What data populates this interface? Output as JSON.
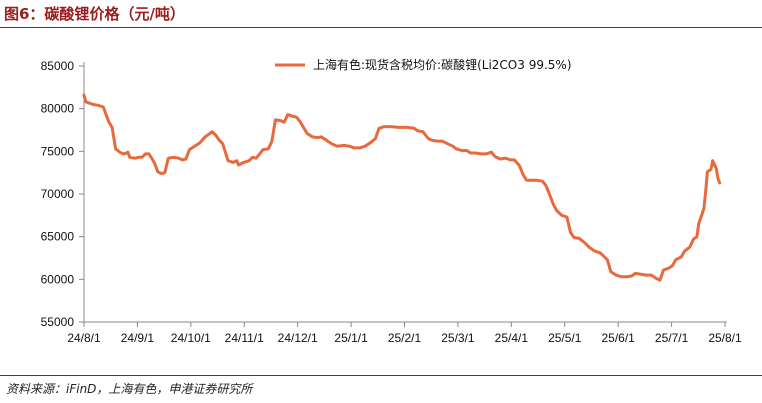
{
  "figure": {
    "title": "图6：碳酸锂价格（元/吨）",
    "source": "资料来源：iFinD，上海有色，申港证券研究所"
  },
  "colors": {
    "accent": "#9a1c1c",
    "series": "#e8693b"
  },
  "chart_data": {
    "type": "line",
    "title": "",
    "xlabel": "",
    "ylabel": "",
    "ylim": [
      55000,
      85000
    ],
    "yticks": [
      "55000",
      "60000",
      "65000",
      "70000",
      "75000",
      "80000",
      "85000"
    ],
    "xticks": [
      "24/8/1",
      "24/9/1",
      "24/10/1",
      "24/11/1",
      "24/12/1",
      "25/1/1",
      "25/2/1",
      "25/3/1",
      "25/4/1",
      "25/5/1",
      "25/6/1",
      "25/7/1",
      "25/8/1"
    ],
    "grid": false,
    "legend": "top",
    "series": [
      {
        "name": "上海有色:现货含税均价:碳酸锂(Li2CO3 99.5%)",
        "points": [
          [
            "2024-08-01",
            81600
          ],
          [
            "2024-08-02",
            80800
          ],
          [
            "2024-08-06",
            80500
          ],
          [
            "2024-08-09",
            80400
          ],
          [
            "2024-08-12",
            80200
          ],
          [
            "2024-08-15",
            78500
          ],
          [
            "2024-08-17",
            77800
          ],
          [
            "2024-08-19",
            75300
          ],
          [
            "2024-08-22",
            74800
          ],
          [
            "2024-08-24",
            74700
          ],
          [
            "2024-08-26",
            74900
          ],
          [
            "2024-08-27",
            74300
          ],
          [
            "2024-08-30",
            74200
          ],
          [
            "2024-09-01",
            74300
          ],
          [
            "2024-09-03",
            74300
          ],
          [
            "2024-09-05",
            74700
          ],
          [
            "2024-09-07",
            74700
          ],
          [
            "2024-09-10",
            73700
          ],
          [
            "2024-09-12",
            72600
          ],
          [
            "2024-09-14",
            72400
          ],
          [
            "2024-09-16",
            72500
          ],
          [
            "2024-09-18",
            74200
          ],
          [
            "2024-09-21",
            74300
          ],
          [
            "2024-09-24",
            74200
          ],
          [
            "2024-09-26",
            74000
          ],
          [
            "2024-09-28",
            74100
          ],
          [
            "2024-09-30",
            75200
          ],
          [
            "2024-10-03",
            75600
          ],
          [
            "2024-10-06",
            76000
          ],
          [
            "2024-10-09",
            76700
          ],
          [
            "2024-10-11",
            77000
          ],
          [
            "2024-10-13",
            77300
          ],
          [
            "2024-10-15",
            76900
          ],
          [
            "2024-10-17",
            76300
          ],
          [
            "2024-10-19",
            75900
          ],
          [
            "2024-10-22",
            73900
          ],
          [
            "2024-10-25",
            73700
          ],
          [
            "2024-10-27",
            73900
          ],
          [
            "2024-10-28",
            73400
          ],
          [
            "2024-10-31",
            73700
          ],
          [
            "2024-11-03",
            73900
          ],
          [
            "2024-11-05",
            74300
          ],
          [
            "2024-11-07",
            74200
          ],
          [
            "2024-11-09",
            74700
          ],
          [
            "2024-11-11",
            75200
          ],
          [
            "2024-11-14",
            75300
          ],
          [
            "2024-11-16",
            76200
          ],
          [
            "2024-11-18",
            78700
          ],
          [
            "2024-11-21",
            78600
          ],
          [
            "2024-11-23",
            78400
          ],
          [
            "2024-11-25",
            79300
          ],
          [
            "2024-11-28",
            79100
          ],
          [
            "2024-11-30",
            79000
          ],
          [
            "2024-12-02",
            78500
          ],
          [
            "2024-12-04",
            77800
          ],
          [
            "2024-12-06",
            77100
          ],
          [
            "2024-12-09",
            76700
          ],
          [
            "2024-12-12",
            76600
          ],
          [
            "2024-12-14",
            76700
          ],
          [
            "2024-12-17",
            76300
          ],
          [
            "2024-12-20",
            75900
          ],
          [
            "2024-12-23",
            75600
          ],
          [
            "2024-12-27",
            75700
          ],
          [
            "2024-12-30",
            75600
          ],
          [
            "2025-01-02",
            75400
          ],
          [
            "2025-01-05",
            75400
          ],
          [
            "2025-01-08",
            75600
          ],
          [
            "2025-01-11",
            76000
          ],
          [
            "2025-01-14",
            76500
          ],
          [
            "2025-01-16",
            77700
          ],
          [
            "2025-01-19",
            77900
          ],
          [
            "2025-01-23",
            77900
          ],
          [
            "2025-01-27",
            77800
          ],
          [
            "2025-02-01",
            77800
          ],
          [
            "2025-02-05",
            77700
          ],
          [
            "2025-02-07",
            77400
          ],
          [
            "2025-02-10",
            77300
          ],
          [
            "2025-02-13",
            76500
          ],
          [
            "2025-02-15",
            76300
          ],
          [
            "2025-02-18",
            76200
          ],
          [
            "2025-02-21",
            76200
          ],
          [
            "2025-02-24",
            75900
          ],
          [
            "2025-02-27",
            75600
          ],
          [
            "2025-03-01",
            75300
          ],
          [
            "2025-03-04",
            75100
          ],
          [
            "2025-03-07",
            75100
          ],
          [
            "2025-03-09",
            74800
          ],
          [
            "2025-03-12",
            74800
          ],
          [
            "2025-03-15",
            74700
          ],
          [
            "2025-03-18",
            74700
          ],
          [
            "2025-03-21",
            74900
          ],
          [
            "2025-03-23",
            74400
          ],
          [
            "2025-03-26",
            74100
          ],
          [
            "2025-03-29",
            74200
          ],
          [
            "2025-04-01",
            74000
          ],
          [
            "2025-04-03",
            74000
          ],
          [
            "2025-04-06",
            73300
          ],
          [
            "2025-04-08",
            72300
          ],
          [
            "2025-04-10",
            71600
          ],
          [
            "2025-04-13",
            71600
          ],
          [
            "2025-04-16",
            71600
          ],
          [
            "2025-04-19",
            71500
          ],
          [
            "2025-04-21",
            71000
          ],
          [
            "2025-04-23",
            70000
          ],
          [
            "2025-04-25",
            68900
          ],
          [
            "2025-04-27",
            68100
          ],
          [
            "2025-04-30",
            67500
          ],
          [
            "2025-05-03",
            67300
          ],
          [
            "2025-05-05",
            65500
          ],
          [
            "2025-05-07",
            64900
          ],
          [
            "2025-05-10",
            64800
          ],
          [
            "2025-05-13",
            64300
          ],
          [
            "2025-05-16",
            63700
          ],
          [
            "2025-05-19",
            63300
          ],
          [
            "2025-05-22",
            63100
          ],
          [
            "2025-05-26",
            62300
          ],
          [
            "2025-05-28",
            60900
          ],
          [
            "2025-05-31",
            60500
          ],
          [
            "2025-06-03",
            60300
          ],
          [
            "2025-06-06",
            60300
          ],
          [
            "2025-06-09",
            60400
          ],
          [
            "2025-06-11",
            60700
          ],
          [
            "2025-06-14",
            60600
          ],
          [
            "2025-06-17",
            60500
          ],
          [
            "2025-06-20",
            60500
          ],
          [
            "2025-06-23",
            60100
          ],
          [
            "2025-06-25",
            59900
          ],
          [
            "2025-06-27",
            61100
          ],
          [
            "2025-06-30",
            61300
          ],
          [
            "2025-07-02",
            61600
          ],
          [
            "2025-07-04",
            62300
          ],
          [
            "2025-07-07",
            62600
          ],
          [
            "2025-07-09",
            63300
          ],
          [
            "2025-07-12",
            63800
          ],
          [
            "2025-07-14",
            64700
          ],
          [
            "2025-07-16",
            65000
          ],
          [
            "2025-07-17",
            66500
          ],
          [
            "2025-07-19",
            67700
          ],
          [
            "2025-07-20",
            68300
          ],
          [
            "2025-07-21",
            70300
          ],
          [
            "2025-07-22",
            72600
          ],
          [
            "2025-07-24",
            72900
          ],
          [
            "2025-07-25",
            73900
          ],
          [
            "2025-07-27",
            73000
          ],
          [
            "2025-07-28",
            71800
          ],
          [
            "2025-07-29",
            71300
          ]
        ]
      }
    ]
  }
}
